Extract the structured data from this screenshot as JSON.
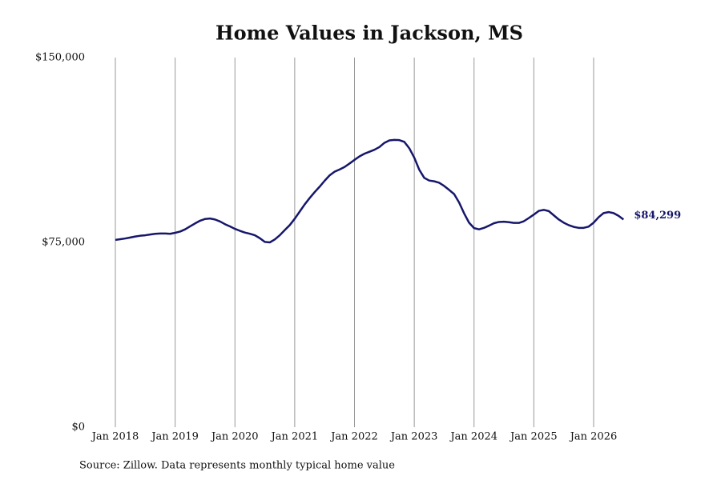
{
  "chart_data": {
    "type": "line",
    "title": "Home Values in Jackson, MS",
    "source": "Source: Zillow. Data represents monthly typical home value",
    "color": "#16166b",
    "grid": "x",
    "x": [
      "2018-01",
      "2018-02",
      "2018-03",
      "2018-04",
      "2018-05",
      "2018-06",
      "2018-07",
      "2018-08",
      "2018-09",
      "2018-10",
      "2018-11",
      "2018-12",
      "2019-01",
      "2019-02",
      "2019-03",
      "2019-04",
      "2019-05",
      "2019-06",
      "2019-07",
      "2019-08",
      "2019-09",
      "2019-10",
      "2019-11",
      "2019-12",
      "2020-01",
      "2020-02",
      "2020-03",
      "2020-04",
      "2020-05",
      "2020-06",
      "2020-07",
      "2020-08",
      "2020-09",
      "2020-10",
      "2020-11",
      "2020-12",
      "2021-01",
      "2021-02",
      "2021-03",
      "2021-04",
      "2021-05",
      "2021-06",
      "2021-07",
      "2021-08",
      "2021-09",
      "2021-10",
      "2021-11",
      "2021-12",
      "2022-01",
      "2022-02",
      "2022-03",
      "2022-04",
      "2022-05",
      "2022-06",
      "2022-07",
      "2022-08",
      "2022-09",
      "2022-10",
      "2022-11",
      "2022-12",
      "2023-01",
      "2023-02",
      "2023-03",
      "2023-04",
      "2023-05",
      "2023-06",
      "2023-07",
      "2023-08",
      "2023-09",
      "2023-10",
      "2023-11",
      "2023-12",
      "2024-01",
      "2024-02",
      "2024-03",
      "2024-04",
      "2024-05",
      "2024-06",
      "2024-07",
      "2024-08",
      "2024-09",
      "2024-10",
      "2024-11",
      "2024-12",
      "2025-01",
      "2025-02",
      "2025-03",
      "2025-04",
      "2025-05",
      "2025-06",
      "2025-07",
      "2025-08",
      "2025-09",
      "2025-10",
      "2025-11",
      "2025-12",
      "2026-01",
      "2026-02",
      "2026-03",
      "2026-04",
      "2026-05",
      "2026-06",
      "2026-07"
    ],
    "values": [
      76000,
      76300,
      76600,
      77000,
      77400,
      77700,
      77900,
      78200,
      78500,
      78600,
      78600,
      78500,
      78900,
      79400,
      80300,
      81500,
      82700,
      83800,
      84500,
      84700,
      84300,
      83500,
      82400,
      81500,
      80500,
      79700,
      79000,
      78500,
      77900,
      76700,
      75200,
      75000,
      76200,
      77900,
      80000,
      82000,
      84600,
      87500,
      90400,
      93000,
      95400,
      97600,
      100000,
      102200,
      103700,
      104600,
      105600,
      107000,
      108500,
      109900,
      111000,
      111800,
      112600,
      113700,
      115400,
      116400,
      116600,
      116500,
      115800,
      113200,
      109400,
      104500,
      101200,
      100100,
      99800,
      99200,
      97900,
      96300,
      94600,
      91200,
      86800,
      83000,
      80800,
      80300,
      80900,
      81800,
      82800,
      83300,
      83400,
      83200,
      82900,
      82900,
      83600,
      84900,
      86300,
      87800,
      88200,
      87700,
      86000,
      84300,
      83000,
      82000,
      81300,
      80900,
      80900,
      81400,
      83000,
      85200,
      86900,
      87300,
      86900,
      85800,
      84299
    ],
    "value_labels": [
      null,
      null,
      null,
      null,
      null,
      null,
      null,
      null,
      null,
      null,
      null,
      null,
      null,
      null,
      null,
      null,
      null,
      null,
      null,
      null,
      null,
      null,
      null,
      null,
      null,
      null,
      null,
      null,
      null,
      null,
      null,
      null,
      null,
      null,
      null,
      null,
      null,
      null,
      null,
      null,
      null,
      null,
      null,
      null,
      null,
      null,
      null,
      null,
      null,
      null,
      null,
      null,
      null,
      null,
      null,
      null,
      null,
      null,
      null,
      null,
      null,
      null,
      null,
      null,
      null,
      null,
      null,
      null,
      null,
      null,
      null,
      null,
      null,
      null,
      null,
      null,
      null,
      null,
      null,
      null,
      null,
      null,
      null,
      null,
      null,
      null,
      null,
      null,
      null,
      null,
      null,
      null,
      null,
      null,
      null,
      null,
      null,
      null,
      null,
      null,
      null,
      null,
      "$84,299"
    ],
    "ylim": [
      0,
      150000
    ],
    "yticks": [
      {
        "value": 0,
        "label": "$0"
      },
      {
        "value": 75000,
        "label": "$75,000"
      },
      {
        "value": 150000,
        "label": "$150,000"
      }
    ],
    "xticks": [
      {
        "value": "2018-01",
        "label": "Jan 2018"
      },
      {
        "value": "2019-01",
        "label": "Jan 2019"
      },
      {
        "value": "2020-01",
        "label": "Jan 2020"
      },
      {
        "value": "2021-01",
        "label": "Jan 2021"
      },
      {
        "value": "2022-01",
        "label": "Jan 2022"
      },
      {
        "value": "2023-01",
        "label": "Jan 2023"
      },
      {
        "value": "2024-01",
        "label": "Jan 2024"
      },
      {
        "value": "2025-01",
        "label": "Jan 2025"
      },
      {
        "value": "2026-01",
        "label": "Jan 2026"
      }
    ]
  }
}
